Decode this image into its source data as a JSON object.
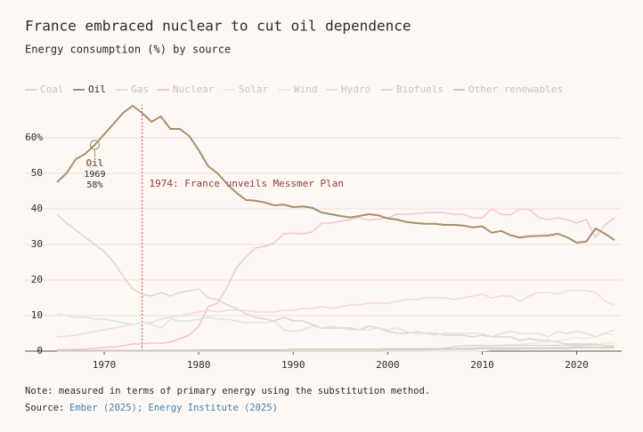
{
  "chart_data": {
    "type": "line",
    "title": "France embraced nuclear to cut oil dependence",
    "subtitle": "Energy consumption (%) by source",
    "x": [
      1965,
      1966,
      1967,
      1968,
      1969,
      1970,
      1971,
      1972,
      1973,
      1974,
      1975,
      1976,
      1977,
      1978,
      1979,
      1980,
      1981,
      1982,
      1983,
      1984,
      1985,
      1986,
      1987,
      1988,
      1989,
      1990,
      1991,
      1992,
      1993,
      1994,
      1995,
      1996,
      1997,
      1998,
      1999,
      2000,
      2001,
      2002,
      2003,
      2004,
      2005,
      2006,
      2007,
      2008,
      2009,
      2010,
      2011,
      2012,
      2013,
      2014,
      2015,
      2016,
      2017,
      2018,
      2019,
      2020,
      2021,
      2022,
      2023,
      2024
    ],
    "series": [
      {
        "name": "Coal",
        "color": "#dcd6d1",
        "values": [
          38.5,
          36,
          34,
          32,
          30,
          28,
          25,
          21,
          17.5,
          16,
          15.5,
          16.5,
          15.5,
          16.5,
          17,
          17.5,
          15,
          14.5,
          13,
          12,
          10.5,
          9.5,
          9,
          8.5,
          9.5,
          8.5,
          8.5,
          7.5,
          6.5,
          6.5,
          6.5,
          6.5,
          6,
          7,
          6.5,
          5.5,
          5,
          5,
          5.5,
          5,
          5,
          4.5,
          4.5,
          4.5,
          4,
          4.5,
          4,
          4,
          4,
          3,
          3.5,
          3,
          3,
          2.5,
          2,
          2,
          2,
          2,
          1.5,
          1.5
        ]
      },
      {
        "name": "Oil",
        "color": "#a68f6c",
        "values": [
          47.5,
          50,
          54,
          55.5,
          58,
          61,
          64,
          67,
          69,
          67,
          64.5,
          66,
          62.5,
          62.5,
          60.5,
          56.5,
          52,
          50,
          47,
          44.5,
          42.5,
          42.3,
          41.8,
          41,
          41.2,
          40.5,
          40.7,
          40.3,
          39,
          38.5,
          38,
          37.6,
          38,
          38.5,
          38.2,
          37.3,
          37,
          36.3,
          36,
          35.8,
          35.8,
          35.5,
          35.5,
          35.3,
          34.8,
          35.1,
          33.3,
          33.8,
          32.6,
          31.9,
          32.3,
          32.4,
          32.5,
          33,
          32,
          30.5,
          30.8,
          34.5,
          33,
          31.2
        ]
      },
      {
        "name": "Gas",
        "color": "#f1dcdc",
        "values": [
          4,
          4.2,
          4.5,
          5,
          5.5,
          6,
          6.5,
          7,
          7.5,
          8,
          8,
          9,
          9.5,
          10,
          10.5,
          11,
          11.5,
          11,
          11.5,
          11.5,
          11.5,
          11,
          11,
          11,
          11.5,
          11.5,
          12,
          12,
          12.5,
          12,
          12.5,
          13,
          13,
          13.5,
          13.5,
          13.5,
          14,
          14.5,
          14.5,
          15,
          15,
          15,
          14.5,
          15,
          15.5,
          16,
          15,
          15.5,
          15.5,
          14,
          15.5,
          16.5,
          16.5,
          16,
          17,
          17,
          17,
          16.5,
          14,
          13
        ]
      },
      {
        "name": "Nuclear",
        "color": "#f4c4d0",
        "values": [
          0.3,
          0.4,
          0.5,
          0.6,
          0.8,
          1,
          1.2,
          1.5,
          2,
          2,
          2.3,
          2.2,
          2.5,
          3.5,
          4.5,
          7,
          12.5,
          13.5,
          18,
          23.5,
          26.5,
          29,
          29.5,
          30.5,
          33,
          33.2,
          33,
          33.5,
          36,
          36,
          36.5,
          37,
          37.5,
          36.8,
          37.2,
          37.5,
          38.5,
          38.5,
          38.7,
          38.9,
          39,
          38.9,
          38.5,
          38.5,
          37.5,
          37.5,
          40,
          38.5,
          38.3,
          40,
          39.8,
          37.5,
          37,
          37.5,
          37,
          36,
          37,
          32,
          35.5,
          37.5
        ]
      },
      {
        "name": "Solar",
        "color": "#f3e7da",
        "values": [
          0,
          0,
          0,
          0,
          0,
          0,
          0,
          0,
          0,
          0,
          0,
          0,
          0,
          0,
          0,
          0,
          0,
          0,
          0,
          0,
          0,
          0,
          0,
          0,
          0,
          0,
          0,
          0,
          0,
          0,
          0,
          0,
          0,
          0,
          0,
          0,
          0,
          0,
          0,
          0,
          0,
          0,
          0,
          0,
          0.05,
          0.1,
          0.3,
          0.4,
          0.5,
          0.6,
          0.7,
          0.8,
          0.9,
          1,
          1.1,
          1.3,
          1.4,
          1.8,
          2.2,
          2.5
        ]
      },
      {
        "name": "Wind",
        "color": "#e6ebe8",
        "values": [
          0,
          0,
          0,
          0,
          0,
          0,
          0,
          0,
          0,
          0,
          0,
          0,
          0,
          0,
          0,
          0,
          0,
          0,
          0,
          0,
          0,
          0,
          0,
          0,
          0,
          0,
          0,
          0,
          0,
          0,
          0,
          0,
          0,
          0,
          0,
          0,
          0,
          0,
          0.1,
          0.1,
          0.2,
          0.4,
          0.6,
          0.8,
          1,
          1.3,
          1.5,
          1.7,
          1.8,
          1.9,
          2.2,
          2.3,
          2.6,
          3,
          3.3,
          3.9,
          3.5,
          4,
          5,
          4.5
        ]
      },
      {
        "name": "Hydro",
        "color": "#dce5de",
        "values": [
          10.5,
          10,
          9.5,
          9.5,
          9,
          9,
          8.5,
          8,
          7.5,
          8,
          7.5,
          6.5,
          9,
          8.5,
          8.5,
          9,
          9.5,
          9,
          9,
          8.5,
          8,
          8,
          8,
          8.5,
          6,
          5.5,
          6,
          7,
          6.5,
          7,
          6.5,
          6,
          6,
          6,
          6.5,
          6,
          6.5,
          5.5,
          5,
          5,
          4.5,
          5,
          5,
          5,
          5,
          5,
          4,
          5,
          5.5,
          5,
          5,
          5,
          4,
          5.5,
          5,
          5.5,
          5,
          4,
          5,
          6
        ]
      },
      {
        "name": "Biofuels",
        "color": "#d8dccb",
        "values": [
          0,
          0,
          0,
          0,
          0,
          0,
          0,
          0,
          0,
          0,
          0,
          0,
          0,
          0,
          0,
          0,
          0,
          0,
          0,
          0,
          0,
          0,
          0,
          0,
          0,
          0,
          0,
          0,
          0,
          0,
          0,
          0,
          0,
          0,
          0,
          0.3,
          0.3,
          0.3,
          0.3,
          0.3,
          0.5,
          0.8,
          1.2,
          1.5,
          1.6,
          1.6,
          1.5,
          1.6,
          1.6,
          1.6,
          1.6,
          1.5,
          1.6,
          1.6,
          1.7,
          1.6,
          1.7,
          1.7,
          1.6,
          1.5
        ]
      },
      {
        "name": "Other renewables",
        "color": "#cdc7bf",
        "values": [
          0.2,
          0.2,
          0.2,
          0.2,
          0.2,
          0.2,
          0.2,
          0.2,
          0.2,
          0.2,
          0.2,
          0.2,
          0.2,
          0.2,
          0.2,
          0.3,
          0.3,
          0.3,
          0.3,
          0.3,
          0.3,
          0.3,
          0.3,
          0.3,
          0.3,
          0.5,
          0.5,
          0.5,
          0.5,
          0.5,
          0.5,
          0.5,
          0.5,
          0.5,
          0.5,
          0.6,
          0.6,
          0.6,
          0.6,
          0.6,
          0.6,
          0.6,
          0.6,
          0.6,
          0.6,
          0.8,
          0.8,
          0.8,
          0.8,
          0.8,
          0.8,
          0.8,
          0.8,
          0.8,
          0.8,
          1,
          1,
          1,
          1,
          1
        ]
      }
    ],
    "xlim": [
      1965,
      2024
    ],
    "xticks": [
      1970,
      1980,
      1990,
      2000,
      2010,
      2020
    ],
    "ylim": [
      0,
      70
    ],
    "yticks": [
      0,
      10,
      20,
      30,
      40,
      50,
      {
        "value": 60,
        "label": "60%"
      }
    ],
    "grid": true,
    "highlight": {
      "series": 1,
      "x": 1969,
      "y": 58,
      "y_label": "58%"
    },
    "event": {
      "x": 1974,
      "text": "1974: France unveils Messmer Plan"
    },
    "note": "Note: measured in terms of primary energy using the substitution method.",
    "source_label": "Source:",
    "source": "Ember (2025); Energy Institute (2025)"
  }
}
